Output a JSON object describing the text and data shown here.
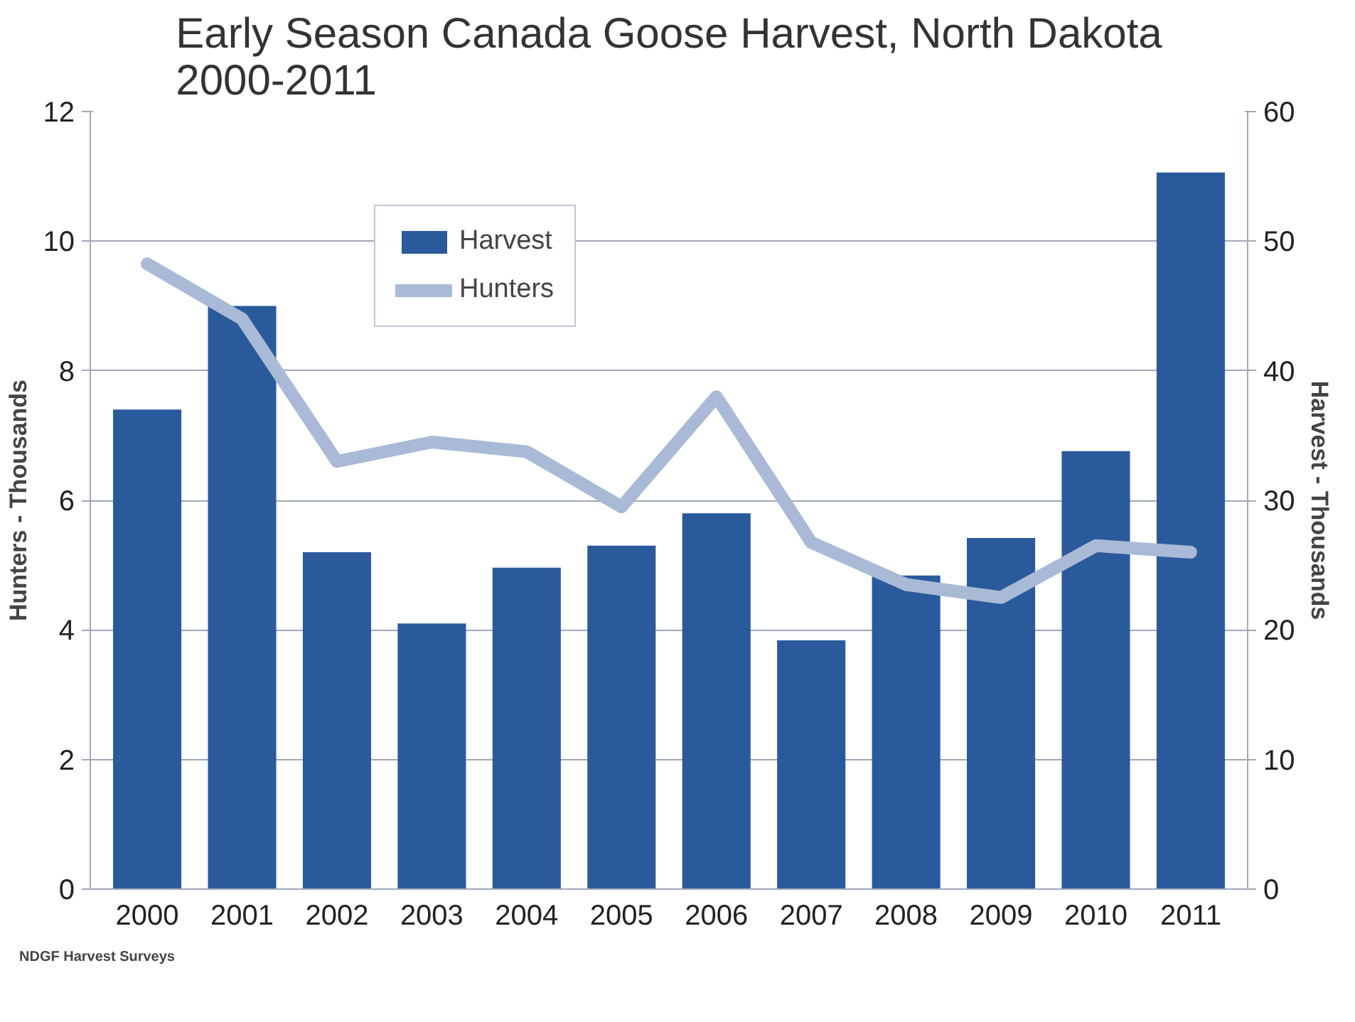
{
  "chart_data": {
    "type": "bar",
    "title": "Early Season Canada Goose Harvest, North Dakota\n2000-2011",
    "categories": [
      "2000",
      "2001",
      "2002",
      "2003",
      "2004",
      "2005",
      "2006",
      "2007",
      "2008",
      "2009",
      "2010",
      "2011"
    ],
    "series": [
      {
        "name": "Harvest",
        "axis": "y2",
        "color": "#2a5a9c",
        "values": [
          37,
          45,
          26,
          20.5,
          24.8,
          26.5,
          29,
          19.2,
          24.2,
          27.1,
          33.8,
          55.3
        ]
      },
      {
        "name": "Hunters",
        "type": "line",
        "axis": "y",
        "color": "#a9bad6",
        "values": [
          9.65,
          8.8,
          6.6,
          6.9,
          6.75,
          5.9,
          7.6,
          5.35,
          4.7,
          4.5,
          5.3,
          5.2
        ]
      }
    ],
    "ylabel": "Hunters - Thousands",
    "y2label": "Harvest - Thousands",
    "ylim": [
      0,
      12
    ],
    "yticks": [
      0,
      2,
      4,
      6,
      8,
      10,
      12
    ],
    "y2lim": [
      0,
      60
    ],
    "y2ticks": [
      0,
      10,
      20,
      30,
      40,
      50,
      60
    ],
    "grid": "y",
    "legend": "top",
    "marker": "none",
    "line_style": "solid",
    "annotations": [
      "NDGF Harvest Surveys"
    ]
  }
}
